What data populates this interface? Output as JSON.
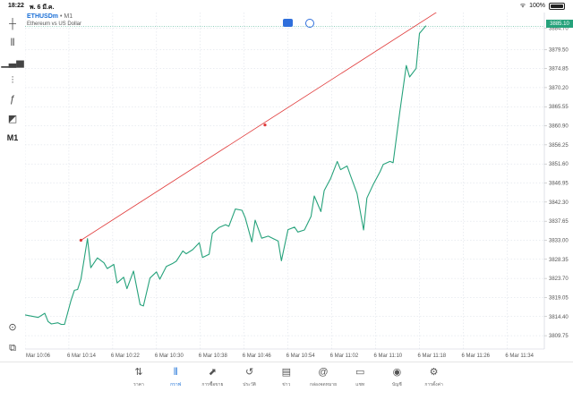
{
  "status": {
    "time": "18:22",
    "date": "พ. 6 มี.ค.",
    "battery": "100%"
  },
  "symbol": {
    "name": "ETHUSDm",
    "separator": "•",
    "timeframe": "M1",
    "description": "Ethereum vs US Dollar"
  },
  "left_toolbar": [
    {
      "name": "crosshair-icon",
      "glyph": "┼"
    },
    {
      "name": "candlestick-type-icon",
      "glyph": "⫴"
    },
    {
      "name": "indicators-icon",
      "glyph": "▁▃▅"
    },
    {
      "name": "settings-sliders-icon",
      "glyph": "⫶"
    },
    {
      "name": "function-icon",
      "glyph": "ƒ"
    },
    {
      "name": "objects-icon",
      "glyph": "◩"
    },
    {
      "name": "timeframe-label",
      "glyph": "M1"
    }
  ],
  "colors": {
    "series": "#26a27b",
    "trendline": "#e03a3a",
    "grid": "#d6dbe4",
    "accent": "#1a6fd6",
    "price_badge": "#26a27b"
  },
  "chart_data": {
    "type": "line",
    "current_price": "3885.10",
    "y_ticks": [
      "3884.70",
      "3879.50",
      "3874.85",
      "3870.20",
      "3865.55",
      "3860.90",
      "3856.25",
      "3851.60",
      "3846.95",
      "3842.30",
      "3837.65",
      "3833.00",
      "3828.35",
      "3823.70",
      "3819.05",
      "3814.40",
      "3809.75"
    ],
    "x_ticks": [
      "l Mar 10:06",
      "6 Mar 10:14",
      "6 Mar 10:22",
      "6 Mar 10:30",
      "6 Mar 10:38",
      "6 Mar 10:46",
      "6 Mar 10:54",
      "6 Mar 11:02",
      "6 Mar 11:10",
      "6 Mar 11:18",
      "6 Mar 11:26",
      "6 Mar 11:34"
    ],
    "ylim": [
      3806.5,
      3888.5
    ],
    "xlim": [
      10.02,
      11.6
    ],
    "series": [
      {
        "values": [
          [
            10.02,
            3814.8
          ],
          [
            10.06,
            3814.2
          ],
          [
            10.08,
            3815.2
          ],
          [
            10.09,
            3813.2
          ],
          [
            10.1,
            3812.6
          ],
          [
            10.12,
            3812.9
          ],
          [
            10.13,
            3812.5
          ],
          [
            10.14,
            3812.5
          ],
          [
            10.16,
            3818.4
          ],
          [
            10.17,
            3820.8
          ],
          [
            10.18,
            3821.0
          ],
          [
            10.19,
            3823.5
          ],
          [
            10.21,
            3833.4
          ],
          [
            10.22,
            3826.3
          ],
          [
            10.24,
            3828.7
          ],
          [
            10.26,
            3827.5
          ],
          [
            10.27,
            3826.1
          ],
          [
            10.29,
            3827.1
          ],
          [
            10.3,
            3822.6
          ],
          [
            10.32,
            3824.0
          ],
          [
            10.33,
            3821.2
          ],
          [
            10.35,
            3825.5
          ],
          [
            10.37,
            3817.3
          ],
          [
            10.38,
            3817.0
          ],
          [
            10.4,
            3823.8
          ],
          [
            10.42,
            3825.3
          ],
          [
            10.43,
            3823.5
          ],
          [
            10.45,
            3826.6
          ],
          [
            10.47,
            3827.4
          ],
          [
            10.48,
            3827.9
          ],
          [
            10.5,
            3830.4
          ],
          [
            10.51,
            3829.7
          ],
          [
            10.53,
            3830.7
          ],
          [
            10.55,
            3832.4
          ],
          [
            10.56,
            3828.8
          ],
          [
            10.58,
            3829.6
          ],
          [
            10.59,
            3834.7
          ],
          [
            10.61,
            3836.1
          ],
          [
            10.63,
            3836.8
          ],
          [
            10.64,
            3836.4
          ],
          [
            10.66,
            3840.6
          ],
          [
            10.68,
            3840.3
          ],
          [
            10.69,
            3838.5
          ],
          [
            10.71,
            3832.6
          ],
          [
            10.72,
            3837.9
          ],
          [
            10.74,
            3833.5
          ],
          [
            10.76,
            3834.0
          ],
          [
            10.77,
            3833.6
          ],
          [
            10.79,
            3832.8
          ],
          [
            10.8,
            3828.0
          ],
          [
            10.82,
            3835.6
          ],
          [
            10.84,
            3836.2
          ],
          [
            10.85,
            3835.0
          ],
          [
            10.87,
            3835.5
          ],
          [
            10.89,
            3838.8
          ],
          [
            10.9,
            3843.8
          ],
          [
            10.92,
            3840.0
          ],
          [
            10.93,
            3845.1
          ],
          [
            10.95,
            3848.1
          ],
          [
            10.97,
            3852.2
          ],
          [
            10.98,
            3850.2
          ],
          [
            11.0,
            3851.1
          ],
          [
            11.01,
            3848.8
          ],
          [
            11.03,
            3844.4
          ],
          [
            11.05,
            3835.5
          ],
          [
            11.06,
            3843.3
          ],
          [
            11.08,
            3846.7
          ],
          [
            11.1,
            3849.7
          ],
          [
            11.11,
            3851.5
          ],
          [
            11.13,
            3852.2
          ],
          [
            11.14,
            3851.9
          ],
          [
            11.16,
            3864.2
          ],
          [
            11.18,
            3875.6
          ],
          [
            11.19,
            3872.8
          ],
          [
            11.21,
            3874.9
          ],
          [
            11.22,
            3883.4
          ],
          [
            11.24,
            3885.3
          ]
        ]
      }
    ],
    "trendline": {
      "color": "#e03a3a",
      "points": [
        [
          10.19,
          3833.0
        ],
        [
          10.75,
          3861.1
        ],
        [
          11.3,
          3890.0
        ]
      ]
    },
    "grid": true
  },
  "tabs": [
    {
      "name": "tab-quotes",
      "glyph": "⇅",
      "label": "ราคา",
      "active": false
    },
    {
      "name": "tab-chart",
      "glyph": "⫴",
      "label": "กราฟ",
      "active": true
    },
    {
      "name": "tab-trade",
      "glyph": "⬈",
      "label": "การซื้อขาย",
      "active": false
    },
    {
      "name": "tab-history",
      "glyph": "↺",
      "label": "ประวัติ",
      "active": false
    },
    {
      "name": "tab-news",
      "glyph": "▤",
      "label": "ข่าว",
      "active": false
    },
    {
      "name": "tab-mailbox",
      "glyph": "@",
      "label": "กล่องจดหมาย",
      "active": false
    },
    {
      "name": "tab-chat",
      "glyph": "▭",
      "label": "แชท",
      "active": false
    },
    {
      "name": "tab-accounts",
      "glyph": "◉",
      "label": "บัญชี",
      "active": false
    },
    {
      "name": "tab-settings",
      "glyph": "⚙",
      "label": "การตั้งค่า",
      "active": false
    }
  ]
}
